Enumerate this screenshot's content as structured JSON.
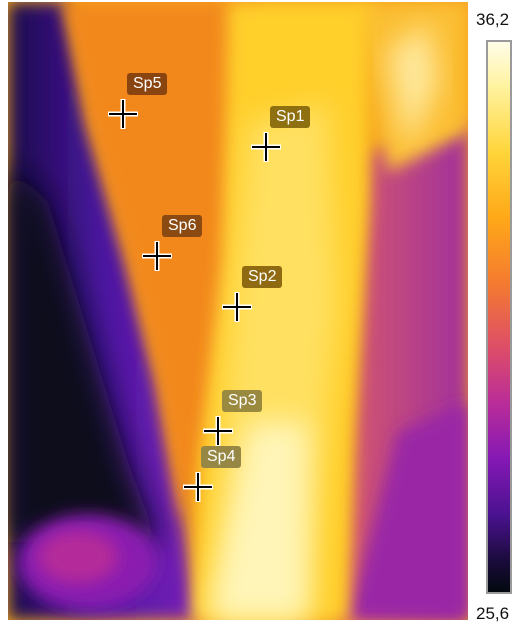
{
  "image": {
    "kind": "thermal infrared image",
    "palette": "iron",
    "palette_colors": [
      "#03090f",
      "#1c0b3e",
      "#4a1290",
      "#8418b4",
      "#b82c9a",
      "#dc4c6a",
      "#f47a30",
      "#ffa818",
      "#ffd53a",
      "#fff3a0",
      "#fffde8"
    ]
  },
  "scale": {
    "max_label": "36,2",
    "min_label": "25,6"
  },
  "spots": [
    {
      "id": "sp5",
      "label": "Sp5",
      "tag_color": "#8a4410"
    },
    {
      "id": "sp1",
      "label": "Sp1",
      "tag_color": "#8f7010"
    },
    {
      "id": "sp6",
      "label": "Sp6",
      "tag_color": "#8a4a12"
    },
    {
      "id": "sp2",
      "label": "Sp2",
      "tag_color": "#8f6a10"
    },
    {
      "id": "sp3",
      "label": "Sp3",
      "tag_color": "#9a8a40"
    },
    {
      "id": "sp4",
      "label": "Sp4",
      "tag_color": "#968844"
    }
  ]
}
